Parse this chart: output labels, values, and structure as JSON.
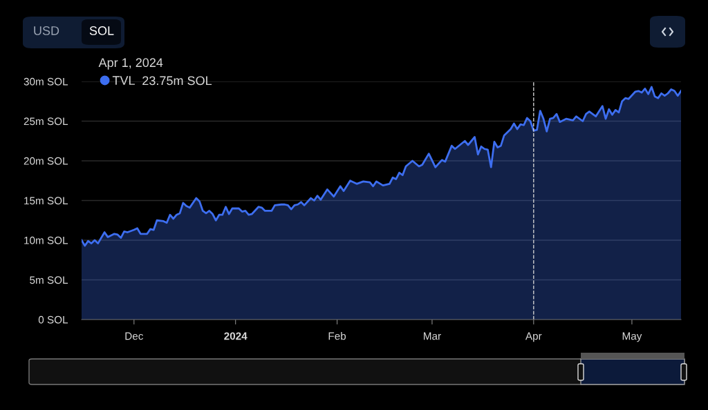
{
  "chart_data": {
    "type": "area",
    "x": [
      "2023-11-15",
      "2023-11-16",
      "2023-11-17",
      "2023-11-18",
      "2023-11-19",
      "2023-11-20",
      "2023-11-22",
      "2023-11-23",
      "2023-11-25",
      "2023-11-26",
      "2023-11-27",
      "2023-11-28",
      "2023-11-29",
      "2023-12-01",
      "2023-12-02",
      "2023-12-03",
      "2023-12-05",
      "2023-12-06",
      "2023-12-07",
      "2023-12-08",
      "2023-12-10",
      "2023-12-11",
      "2023-12-12",
      "2023-12-13",
      "2023-12-14",
      "2023-12-15",
      "2023-12-16",
      "2023-12-17",
      "2023-12-18",
      "2023-12-20",
      "2023-12-21",
      "2023-12-22",
      "2023-12-23",
      "2023-12-24",
      "2023-12-25",
      "2023-12-26",
      "2023-12-27",
      "2023-12-28",
      "2023-12-29",
      "2023-12-30",
      "2023-12-31",
      "2024-01-02",
      "2024-01-03",
      "2024-01-04",
      "2024-01-05",
      "2024-01-06",
      "2024-01-08",
      "2024-01-09",
      "2024-01-10",
      "2024-01-12",
      "2024-01-13",
      "2024-01-15",
      "2024-01-16",
      "2024-01-17",
      "2024-01-18",
      "2024-01-19",
      "2024-01-20",
      "2024-01-21",
      "2024-01-22",
      "2024-01-24",
      "2024-01-25",
      "2024-01-26",
      "2024-01-27",
      "2024-01-29",
      "2024-01-31",
      "2024-02-02",
      "2024-02-03",
      "2024-02-05",
      "2024-02-07",
      "2024-02-09",
      "2024-02-11",
      "2024-02-12",
      "2024-02-13",
      "2024-02-15",
      "2024-02-17",
      "2024-02-18",
      "2024-02-19",
      "2024-02-20",
      "2024-02-21",
      "2024-02-22",
      "2024-02-24",
      "2024-02-26",
      "2024-02-27",
      "2024-02-29",
      "2024-03-02",
      "2024-03-04",
      "2024-03-05",
      "2024-03-07",
      "2024-03-08",
      "2024-03-11",
      "2024-03-12",
      "2024-03-14",
      "2024-03-15",
      "2024-03-16",
      "2024-03-17",
      "2024-03-18",
      "2024-03-19",
      "2024-03-20",
      "2024-03-21",
      "2024-03-22",
      "2024-03-23",
      "2024-03-25",
      "2024-03-26",
      "2024-03-27",
      "2024-03-28",
      "2024-03-29",
      "2024-03-30",
      "2024-03-31",
      "2024-04-01",
      "2024-04-02",
      "2024-04-03",
      "2024-04-04",
      "2024-04-05",
      "2024-04-06",
      "2024-04-07",
      "2024-04-08",
      "2024-04-09",
      "2024-04-11",
      "2024-04-13",
      "2024-04-14",
      "2024-04-16",
      "2024-04-17",
      "2024-04-18",
      "2024-04-20",
      "2024-04-22",
      "2024-04-23",
      "2024-04-24",
      "2024-04-25",
      "2024-04-26",
      "2024-04-27",
      "2024-04-28",
      "2024-04-29",
      "2024-04-30",
      "2024-05-02",
      "2024-05-03",
      "2024-05-04",
      "2024-05-05",
      "2024-05-06",
      "2024-05-07",
      "2024-05-08",
      "2024-05-09",
      "2024-05-10",
      "2024-05-11",
      "2024-05-12",
      "2024-05-13",
      "2024-05-14",
      "2024-05-15",
      "2024-05-16"
    ],
    "series": [
      {
        "name": "TVL",
        "color": "#3d6ef0",
        "values": [
          10.0,
          9.3,
          9.9,
          9.6,
          10.0,
          9.6,
          11.0,
          10.4,
          10.8,
          10.7,
          10.3,
          11.1,
          11.0,
          11.3,
          11.5,
          10.8,
          10.8,
          11.4,
          11.3,
          12.5,
          12.4,
          12.2,
          13.2,
          12.7,
          13.2,
          13.4,
          14.7,
          14.3,
          14.1,
          15.3,
          14.9,
          13.7,
          13.4,
          13.7,
          13.3,
          12.5,
          13.2,
          13.2,
          14.2,
          13.3,
          14.0,
          14.0,
          13.6,
          13.7,
          13.2,
          13.3,
          14.2,
          14.1,
          13.7,
          13.7,
          14.4,
          14.5,
          14.5,
          14.4,
          13.9,
          14.4,
          14.5,
          14.8,
          14.4,
          15.3,
          15.0,
          15.6,
          15.1,
          16.4,
          15.5,
          16.8,
          16.2,
          17.5,
          17.1,
          17.4,
          17.3,
          16.8,
          17.4,
          16.9,
          17.1,
          17.9,
          17.7,
          18.5,
          18.2,
          19.3,
          20.0,
          19.3,
          19.5,
          20.9,
          19.2,
          20.1,
          19.9,
          21.9,
          21.5,
          22.5,
          22.0,
          23.0,
          20.8,
          21.8,
          21.5,
          21.4,
          19.2,
          22.4,
          21.7,
          21.9,
          23.2,
          24.0,
          24.7,
          24.0,
          24.6,
          24.5,
          25.4,
          25.0,
          23.8,
          23.9,
          26.3,
          25.3,
          23.7,
          25.3,
          25.4,
          25.9,
          24.9,
          25.3,
          25.1,
          25.6,
          25.0,
          25.9,
          26.2,
          25.6,
          26.9,
          25.3,
          26.5,
          25.8,
          26.4,
          26.1,
          27.5,
          27.9,
          27.8,
          28.7,
          28.8,
          28.6,
          29.1,
          28.4,
          29.3,
          28.1,
          27.9,
          28.5,
          28.2,
          28.5,
          29.0,
          28.8,
          28.2,
          28.8
        ]
      }
    ],
    "xlim": [
      "2023-11-15",
      "2024-05-16"
    ],
    "xticks": [
      {
        "value": "2023-12-01",
        "label": "Dec"
      },
      {
        "value": "2024-01-01",
        "label": "2024"
      },
      {
        "value": "2024-02-01",
        "label": "Feb"
      },
      {
        "value": "2024-03-01",
        "label": "Mar"
      },
      {
        "value": "2024-04-01",
        "label": "Apr"
      },
      {
        "value": "2024-05-01",
        "label": "May"
      }
    ],
    "ylim": [
      0,
      30
    ],
    "yticks": [
      {
        "value": 0,
        "label": "0 SOL"
      },
      {
        "value": 5,
        "label": "5m SOL"
      },
      {
        "value": 10,
        "label": "10m SOL"
      },
      {
        "value": 15,
        "label": "15m SOL"
      },
      {
        "value": 20,
        "label": "20m SOL"
      },
      {
        "value": 25,
        "label": "25m SOL"
      },
      {
        "value": 30,
        "label": "30m SOL"
      }
    ],
    "grid": "y",
    "legend": "top left",
    "legend_title": "Apr 1, 2024",
    "ref_lines": [
      {
        "axis": "x",
        "value": "2024-04-01",
        "label": null,
        "color": "#d0d0d0",
        "line_style": "dashed"
      }
    ],
    "annotations": [
      "USD",
      "SOL",
      "23.75m SOL"
    ]
  }
}
